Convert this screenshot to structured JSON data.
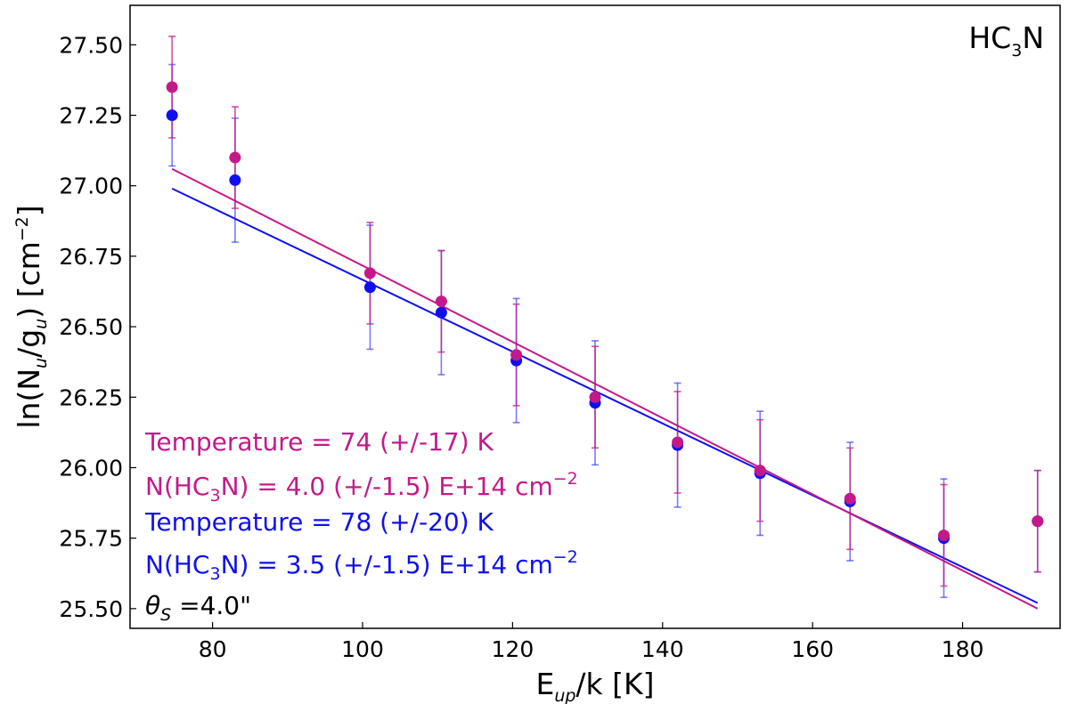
{
  "chart_data": {
    "type": "scatter",
    "title": "",
    "molecule_label": {
      "main": "HC",
      "sub": "3",
      "tail": "N"
    },
    "xlabel": {
      "main": "E",
      "sub": "up",
      "tail": "/k [K]"
    },
    "ylabel": {
      "main": "ln(N",
      "sub1": "u",
      "mid": "/g",
      "sub2": "u",
      "tail": ") [cm",
      "sup": "−2",
      "end": "]"
    },
    "xlim": [
      69,
      193
    ],
    "ylim": [
      25.43,
      27.64
    ],
    "x_ticks": [
      80,
      100,
      120,
      140,
      160,
      180
    ],
    "y_ticks": [
      25.5,
      25.75,
      26.0,
      26.25,
      26.5,
      26.75,
      27.0,
      27.25,
      27.5
    ],
    "x_tick_labels": [
      "80",
      "100",
      "120",
      "140",
      "160",
      "180"
    ],
    "y_tick_labels": [
      "25.50",
      "25.75",
      "26.00",
      "26.25",
      "26.50",
      "26.75",
      "27.00",
      "27.25",
      "27.50"
    ],
    "grid": false,
    "series": [
      {
        "name": "blue",
        "color": "#1010ee",
        "x": [
          74.6,
          83.0,
          101.0,
          110.5,
          120.5,
          131.0,
          142.0,
          153.0,
          165.0,
          177.5,
          190.0
        ],
        "y": [
          27.25,
          27.02,
          26.64,
          26.55,
          26.38,
          26.23,
          26.08,
          25.98,
          25.88,
          25.75,
          25.81
        ],
        "err": [
          0.18,
          0.22,
          0.22,
          0.22,
          0.22,
          0.22,
          0.22,
          0.22,
          0.21,
          0.21,
          0.18
        ],
        "fit": {
          "x": [
            74.6,
            190.0
          ],
          "y": [
            26.99,
            25.52
          ]
        }
      },
      {
        "name": "magenta",
        "color": "#c4198a",
        "x": [
          74.6,
          83.0,
          101.0,
          110.5,
          120.5,
          131.0,
          142.0,
          153.0,
          165.0,
          177.5,
          190.0
        ],
        "y": [
          27.35,
          27.1,
          26.69,
          26.59,
          26.4,
          26.25,
          26.09,
          25.99,
          25.89,
          25.76,
          25.81
        ],
        "err": [
          0.18,
          0.18,
          0.18,
          0.18,
          0.18,
          0.18,
          0.18,
          0.18,
          0.18,
          0.18,
          0.18
        ],
        "fit": {
          "x": [
            74.6,
            190.0
          ],
          "y": [
            27.06,
            25.5
          ]
        }
      }
    ],
    "annotations": {
      "magenta_temperature": "Temperature = 74 (+/-17) K",
      "magenta_column": {
        "pre": "N(HC",
        "sub": "3",
        "post": "N) = 4.0 (+/-1.5) E+14 cm",
        "sup": "−2"
      },
      "blue_temperature": "Temperature = 78 (+/-20) K",
      "blue_column": {
        "pre": "N(HC",
        "sub": "3",
        "post": "N) = 3.5 (+/-1.5) E+14 cm",
        "sup": "−2"
      },
      "source_size": {
        "symbol": "θ",
        "sub": "S",
        "post": " =4.0\""
      }
    },
    "colors": {
      "magenta": "#c4198a",
      "blue": "#1010ee",
      "text": "#000000"
    }
  }
}
